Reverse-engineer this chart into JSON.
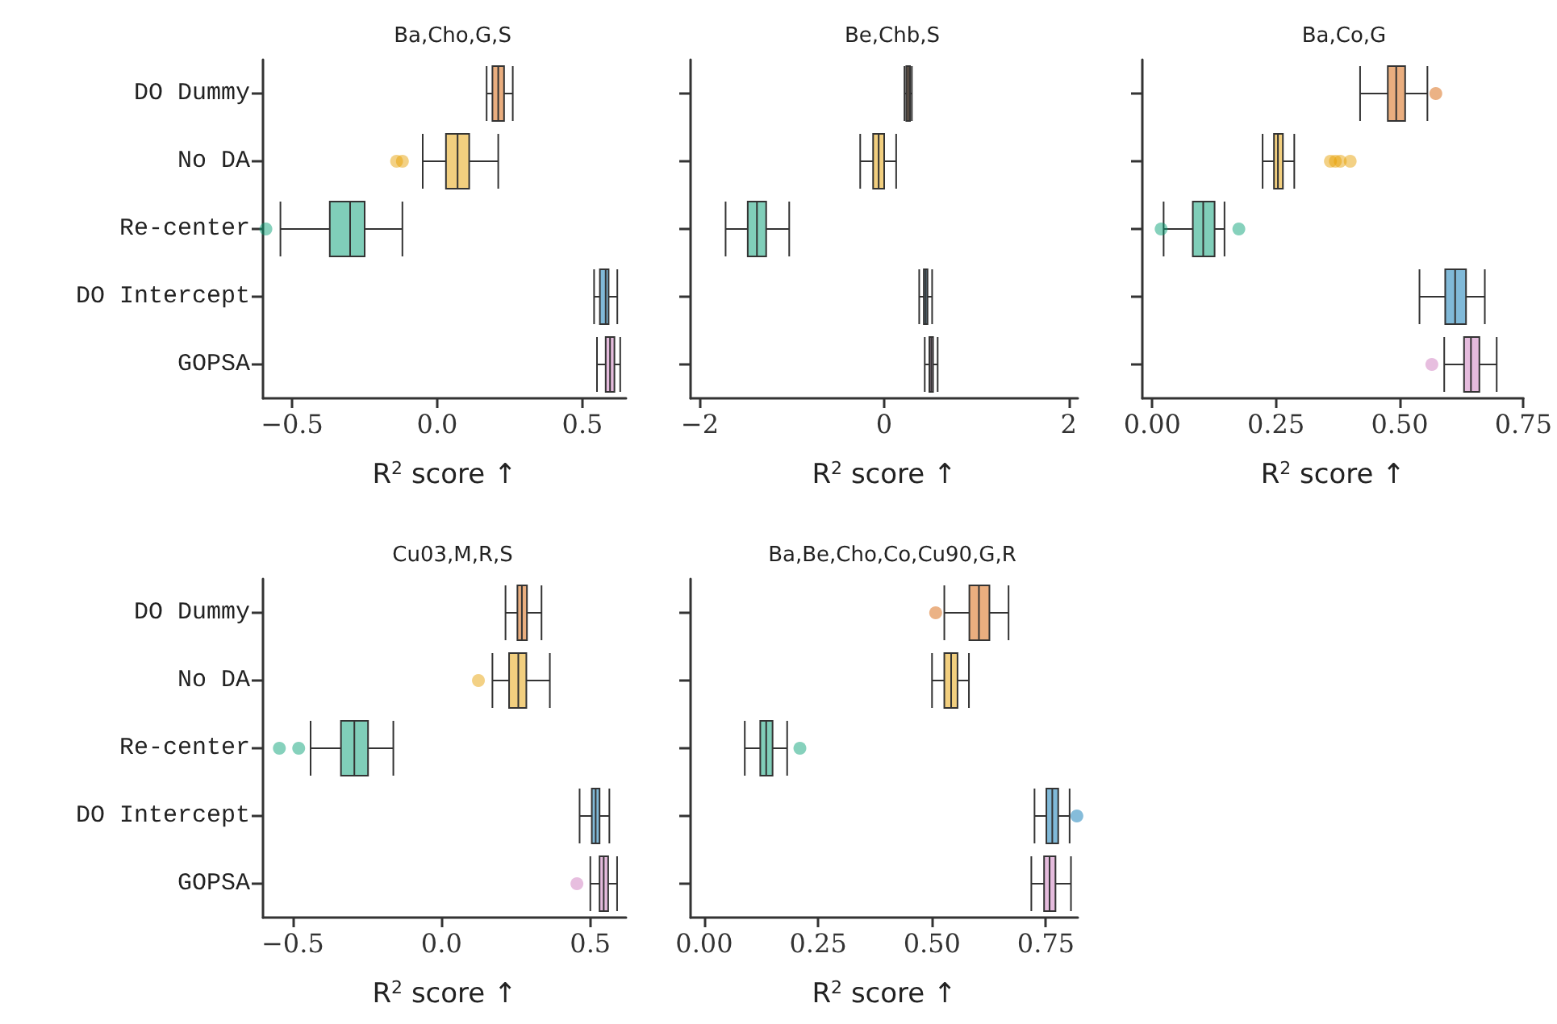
{
  "chart_data": [
    {
      "type": "box",
      "orientation": "horizontal",
      "title": "Ba,Cho,G,S",
      "categories": [
        "DO Dummy",
        "No DA",
        "Re-center",
        "DO Intercept",
        "GOPSA"
      ],
      "colors": [
        "#d55e00",
        "#e69f00",
        "#029e73",
        "#0173b2",
        "#cc78bc"
      ],
      "boxes": [
        {
          "low": 0.17,
          "q1": 0.19,
          "median": 0.21,
          "q3": 0.23,
          "high": 0.26
        },
        {
          "low": -0.05,
          "q1": 0.03,
          "median": 0.07,
          "q3": 0.11,
          "high": 0.21,
          "outliers": [
            -0.14,
            -0.12
          ]
        },
        {
          "low": -0.54,
          "q1": -0.37,
          "median": -0.3,
          "q3": -0.25,
          "high": -0.12,
          "outliers": [
            -0.59
          ]
        },
        {
          "low": 0.54,
          "q1": 0.56,
          "median": 0.58,
          "q3": 0.59,
          "high": 0.62
        },
        {
          "low": 0.55,
          "q1": 0.58,
          "median": 0.595,
          "q3": 0.61,
          "high": 0.63
        }
      ],
      "xlabel": "R$^{2}$ score ↑",
      "xlim": [
        -0.6,
        0.65
      ],
      "xticks": [
        {
          "value": -0.5,
          "label": "−0.5"
        },
        {
          "value": 0,
          "label": "0.0"
        },
        {
          "value": 0.5,
          "label": "0.5"
        }
      ]
    },
    {
      "type": "box",
      "orientation": "horizontal",
      "title": "Be,Chb,S",
      "categories": [
        null,
        null,
        null,
        null,
        null
      ],
      "colors": [
        "#d55e00",
        "#e69f00",
        "#029e73",
        "#0173b2",
        "#cc78bc"
      ],
      "boxes": [
        {
          "low": 0.22,
          "q1": 0.24,
          "median": 0.26,
          "q3": 0.28,
          "high": 0.3
        },
        {
          "low": -0.26,
          "q1": -0.12,
          "median": -0.06,
          "q3": 0,
          "high": 0.13
        },
        {
          "low": -1.72,
          "q1": -1.48,
          "median": -1.38,
          "q3": -1.28,
          "high": -1.03
        },
        {
          "low": 0.38,
          "q1": 0.43,
          "median": 0.45,
          "q3": 0.47,
          "high": 0.52
        },
        {
          "low": 0.44,
          "q1": 0.49,
          "median": 0.51,
          "q3": 0.53,
          "high": 0.58
        }
      ],
      "xlabel": "R$^{2}$ score ↑",
      "xlim": [
        -2.1,
        2.1
      ],
      "xticks": [
        {
          "value": -2,
          "label": "−2"
        },
        {
          "value": 0,
          "label": "0"
        },
        {
          "value": 2,
          "label": "2"
        }
      ]
    },
    {
      "type": "box",
      "orientation": "horizontal",
      "title": "Ba,Co,G",
      "categories": [
        null,
        null,
        null,
        null,
        null
      ],
      "colors": [
        "#d55e00",
        "#e69f00",
        "#029e73",
        "#0173b2",
        "#cc78bc"
      ],
      "boxes": [
        {
          "low": 0.42,
          "q1": 0.476,
          "median": 0.493,
          "q3": 0.511,
          "high": 0.556,
          "outliers": [
            0.573
          ]
        },
        {
          "low": 0.223,
          "q1": 0.246,
          "median": 0.254,
          "q3": 0.264,
          "high": 0.287,
          "outliers": [
            0.36,
            0.37,
            0.38,
            0.4
          ]
        },
        {
          "low": 0.023,
          "q1": 0.082,
          "median": 0.103,
          "q3": 0.126,
          "high": 0.146,
          "outliers": [
            0.018,
            0.175
          ]
        },
        {
          "low": 0.54,
          "q1": 0.592,
          "median": 0.612,
          "q3": 0.634,
          "high": 0.672
        },
        {
          "low": 0.59,
          "q1": 0.63,
          "median": 0.644,
          "q3": 0.661,
          "high": 0.696,
          "outliers": [
            0.565
          ]
        }
      ],
      "xlabel": "R$^{2}$ score ↑",
      "xlim": [
        -0.02,
        0.75
      ],
      "xticks": [
        {
          "value": 0,
          "label": "0.00"
        },
        {
          "value": 0.25,
          "label": "0.25"
        },
        {
          "value": 0.5,
          "label": "0.50"
        },
        {
          "value": 0.75,
          "label": "0.75"
        }
      ]
    },
    {
      "type": "box",
      "orientation": "horizontal",
      "title": "Cu03,M,R,S",
      "categories": [
        "DO Dummy",
        "No DA",
        "Re-center",
        "DO Intercept",
        "GOPSA"
      ],
      "colors": [
        "#d55e00",
        "#e69f00",
        "#029e73",
        "#0173b2",
        "#cc78bc"
      ],
      "boxes": [
        {
          "low": 0.215,
          "q1": 0.255,
          "median": 0.27,
          "q3": 0.287,
          "high": 0.336
        },
        {
          "low": 0.171,
          "q1": 0.227,
          "median": 0.258,
          "q3": 0.285,
          "high": 0.364,
          "outliers": [
            0.124
          ]
        },
        {
          "low": -0.44,
          "q1": -0.338,
          "median": -0.293,
          "q3": -0.247,
          "high": -0.162,
          "outliers": [
            -0.545,
            -0.48
          ]
        },
        {
          "low": 0.464,
          "q1": 0.505,
          "median": 0.518,
          "q3": 0.531,
          "high": 0.564
        },
        {
          "low": 0.5,
          "q1": 0.531,
          "median": 0.545,
          "q3": 0.56,
          "high": 0.59,
          "outliers": [
            0.455
          ]
        }
      ],
      "xlabel": "R$^{2}$ score ↑",
      "xlim": [
        -0.6,
        0.62
      ],
      "xticks": [
        {
          "value": -0.5,
          "label": "−0.5"
        },
        {
          "value": 0,
          "label": "0.0"
        },
        {
          "value": 0.5,
          "label": "0.5"
        }
      ]
    },
    {
      "type": "box",
      "orientation": "horizontal",
      "title": "Ba,Be,Cho,Co,Cu90,G,R",
      "categories": [
        null,
        null,
        null,
        null,
        null
      ],
      "colors": [
        "#d55e00",
        "#e69f00",
        "#029e73",
        "#0173b2",
        "#cc78bc"
      ],
      "boxes": [
        {
          "low": 0.527,
          "q1": 0.582,
          "median": 0.603,
          "q3": 0.626,
          "high": 0.668,
          "outliers": [
            0.508
          ]
        },
        {
          "low": 0.5,
          "q1": 0.527,
          "median": 0.542,
          "q3": 0.556,
          "high": 0.581
        },
        {
          "low": 0.089,
          "q1": 0.123,
          "median": 0.136,
          "q3": 0.15,
          "high": 0.182,
          "outliers": [
            0.21
          ]
        },
        {
          "low": 0.725,
          "q1": 0.751,
          "median": 0.764,
          "q3": 0.777,
          "high": 0.802,
          "outliers": [
            0.818
          ]
        },
        {
          "low": 0.718,
          "q1": 0.746,
          "median": 0.758,
          "q3": 0.771,
          "high": 0.805
        }
      ],
      "xlabel": "R$^{2}$ score ↑",
      "xlim": [
        -0.03,
        0.82
      ],
      "xticks": [
        {
          "value": 0,
          "label": "0.00"
        },
        {
          "value": 0.25,
          "label": "0.25"
        },
        {
          "value": 0.5,
          "label": "0.50"
        },
        {
          "value": 0.75,
          "label": "0.75"
        }
      ]
    }
  ]
}
